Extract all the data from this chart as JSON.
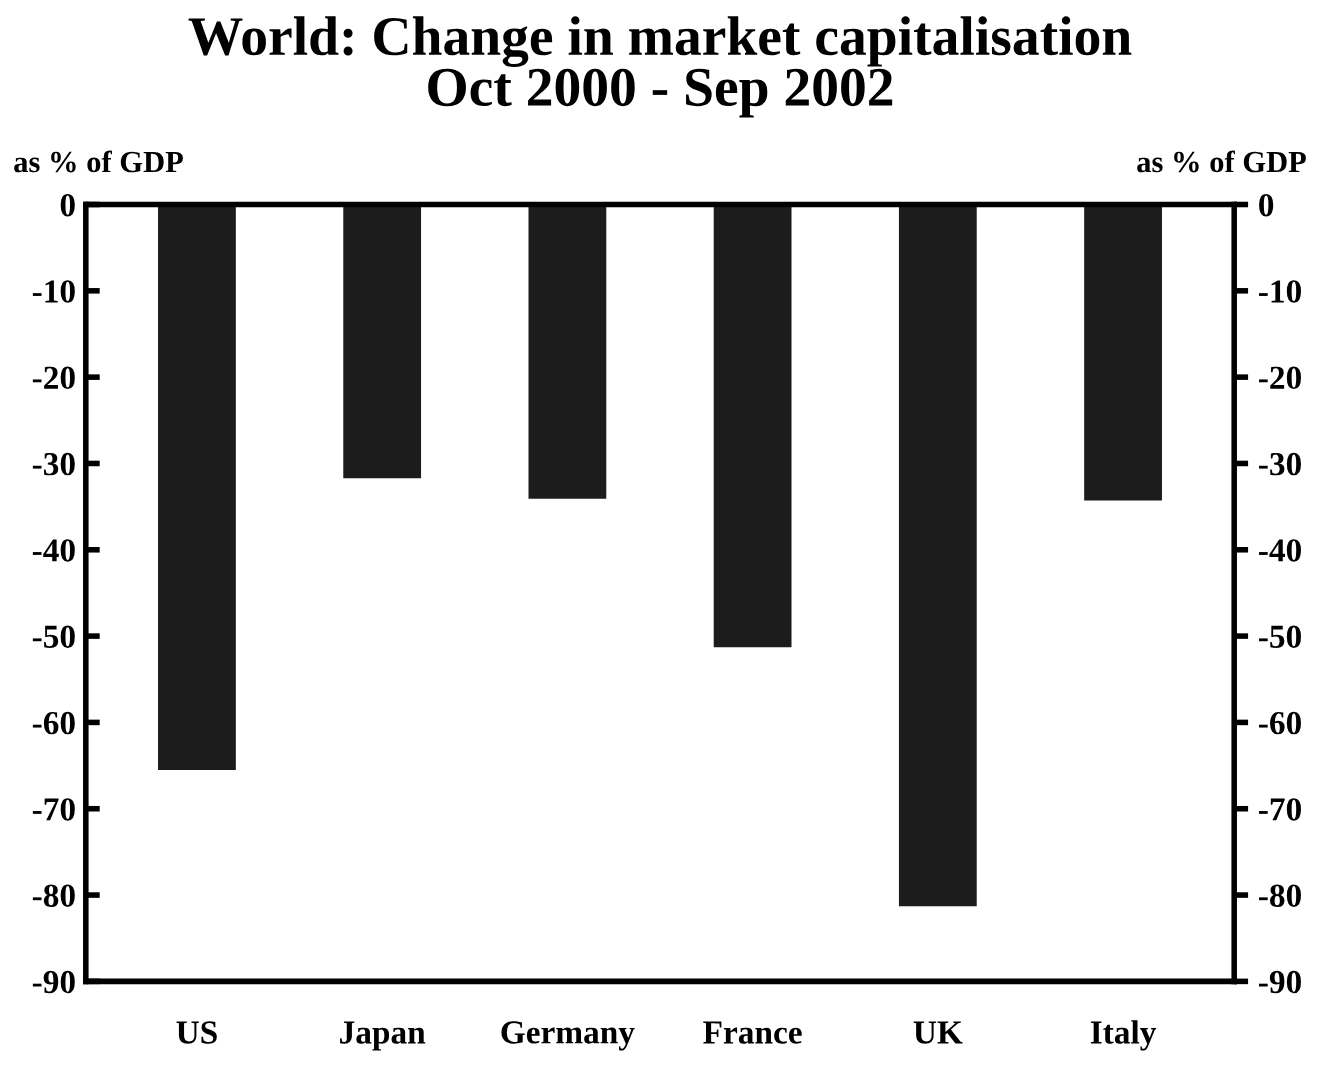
{
  "chart_data": {
    "type": "bar",
    "title": "World: Change in market capitalisation\nOct 2000 - Sep 2002",
    "ylabel": "as % of GDP",
    "y2label": "as % of GDP",
    "categories": [
      "US",
      "Japan",
      "Germany",
      "France",
      "UK",
      "Italy"
    ],
    "values": [
      -65.5,
      -31.7,
      -34.1,
      -51.3,
      -81.3,
      -34.3
    ],
    "color": "#1c1c1c",
    "ylim": [
      -90,
      0
    ],
    "yticks": [
      0,
      -10,
      -20,
      -30,
      -40,
      -50,
      -60,
      -70,
      -80,
      -90
    ],
    "y2lim": [
      -90,
      0
    ],
    "y2ticks": [
      0,
      -10,
      -20,
      -30,
      -40,
      -50,
      -60,
      -70,
      -80,
      -90
    ],
    "grid": false
  }
}
